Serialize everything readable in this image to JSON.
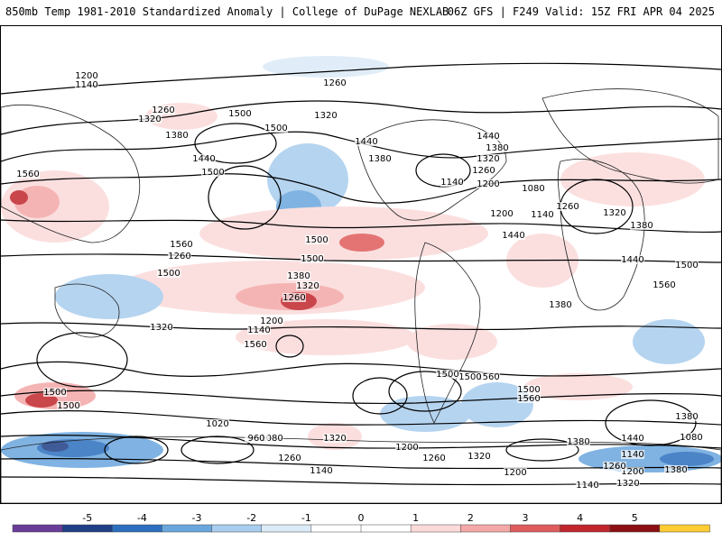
{
  "header": {
    "title_left": "850mb Temp 1981-2010 Standardized Anomaly | College of DuPage NEXLAB",
    "title_right": "06Z GFS | F249 Valid: 15Z FRI APR 04 2025"
  },
  "contour_labels": [
    "1200",
    "1140",
    "1260",
    "1320",
    "1380",
    "1440",
    "1500",
    "1560",
    "1260",
    "1320",
    "1500",
    "1500",
    "1440",
    "1380",
    "1320",
    "1260",
    "1200",
    "1140",
    "1080",
    "1020",
    "960",
    "1560",
    "1500",
    "1500",
    "1440",
    "1380",
    "1320",
    "1260",
    "1200",
    "1140",
    "1080",
    "1200",
    "1140",
    "1260",
    "1320",
    "1380",
    "1440",
    "1500",
    "1560",
    "1380",
    "1440",
    "1500",
    "1560",
    "1500",
    "1560",
    "1500",
    "1440",
    "1380",
    "1320",
    "1260",
    "1200",
    "1140",
    "1200",
    "1260",
    "1320",
    "1380",
    "1080",
    "1140",
    "1380",
    "1260",
    "1320",
    "1500",
    "1500",
    "1560",
    "1500",
    "1380",
    "1320",
    "1260",
    "1200",
    "1140"
  ],
  "colorbar": {
    "ticks": [
      "-5",
      "-4",
      "-3",
      "-2",
      "-1",
      "0",
      "1",
      "2",
      "3",
      "4",
      "5"
    ],
    "colors": [
      "#6a3d9a",
      "#1f3f87",
      "#2d6fbf",
      "#6aa6de",
      "#a9cdee",
      "#dbeaf7",
      "#ffffff",
      "#ffffff",
      "#fbdada",
      "#f4a8a8",
      "#e05c5c",
      "#c0262c",
      "#8b0f14",
      "#ffcc33"
    ]
  },
  "icons": {
    "map": "world-map",
    "colorbar": "colorbar-legend"
  }
}
